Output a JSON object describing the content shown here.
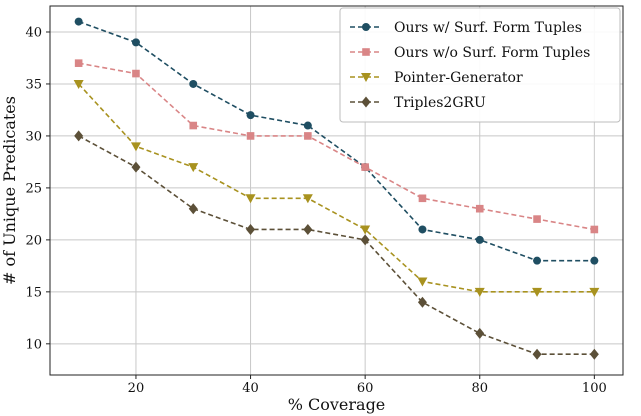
{
  "chart_data": {
    "type": "line",
    "title": "",
    "xlabel": "% Coverage",
    "ylabel": "# of Unique Predicates",
    "xlim": [
      5,
      105
    ],
    "ylim": [
      7,
      42.5
    ],
    "xticks": [
      20,
      40,
      60,
      80,
      100
    ],
    "yticks": [
      10,
      15,
      20,
      25,
      30,
      35,
      40
    ],
    "grid": true,
    "legend_position": "top-right",
    "x": [
      10,
      20,
      30,
      40,
      50,
      60,
      70,
      80,
      90,
      100
    ],
    "series": [
      {
        "name": "Ours w/ Surf. Form Tuples",
        "color": "#1f4e62",
        "marker": "circle",
        "values": [
          41,
          39,
          35,
          32,
          31,
          27,
          21,
          20,
          18,
          18
        ]
      },
      {
        "name": "Ours w/o Surf. Form Tuples",
        "color": "#d98586",
        "marker": "square",
        "values": [
          37,
          36,
          31,
          30,
          30,
          27,
          24,
          23,
          22,
          21
        ]
      },
      {
        "name": "Pointer-Generator",
        "color": "#a8921f",
        "marker": "triangle-down",
        "values": [
          35,
          29,
          27,
          24,
          24,
          21,
          16,
          15,
          15,
          15
        ]
      },
      {
        "name": "Triples2GRU",
        "color": "#5c5038",
        "marker": "diamond",
        "values": [
          30,
          27,
          23,
          21,
          21,
          20,
          14,
          11,
          9,
          9
        ]
      }
    ]
  }
}
